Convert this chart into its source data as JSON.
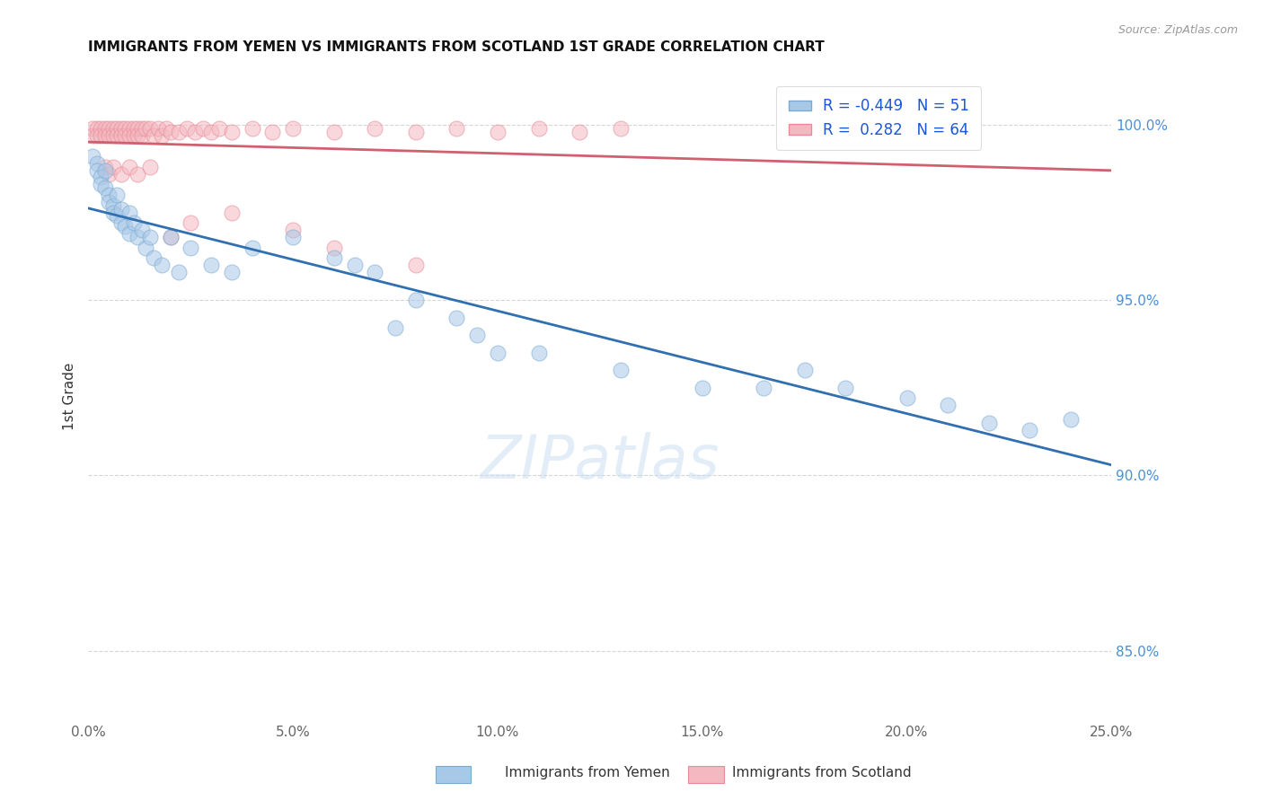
{
  "title": "IMMIGRANTS FROM YEMEN VS IMMIGRANTS FROM SCOTLAND 1ST GRADE CORRELATION CHART",
  "source_text": "Source: ZipAtlas.com",
  "ylabel": "1st Grade",
  "xlim": [
    0.0,
    0.25
  ],
  "ylim": [
    0.83,
    1.015
  ],
  "xticks": [
    0.0,
    0.05,
    0.1,
    0.15,
    0.2,
    0.25
  ],
  "xtick_labels": [
    "0.0%",
    "5.0%",
    "10.0%",
    "15.0%",
    "20.0%",
    "25.0%"
  ],
  "yticks": [
    0.85,
    0.9,
    0.95,
    1.0
  ],
  "ytick_labels": [
    "85.0%",
    "90.0%",
    "95.0%",
    "100.0%"
  ],
  "legend_r_yemen": "-0.449",
  "legend_n_yemen": "51",
  "legend_r_scotland": "0.282",
  "legend_n_scotland": "64",
  "yemen_color": "#a8c8e8",
  "scotland_color": "#f4b8c0",
  "yemen_edge_color": "#7aaad0",
  "scotland_edge_color": "#e88a98",
  "yemen_line_color": "#3070b0",
  "scotland_line_color": "#d06070",
  "watermark": "ZIPatlas",
  "watermark_color": "#c8ddf0",
  "background_color": "#ffffff",
  "yemen_x": [
    0.001,
    0.002,
    0.002,
    0.003,
    0.003,
    0.004,
    0.004,
    0.005,
    0.005,
    0.006,
    0.006,
    0.007,
    0.007,
    0.008,
    0.008,
    0.009,
    0.01,
    0.01,
    0.011,
    0.012,
    0.013,
    0.014,
    0.015,
    0.016,
    0.018,
    0.02,
    0.022,
    0.025,
    0.03,
    0.035,
    0.04,
    0.05,
    0.06,
    0.065,
    0.07,
    0.075,
    0.08,
    0.09,
    0.095,
    0.1,
    0.11,
    0.13,
    0.15,
    0.165,
    0.175,
    0.185,
    0.2,
    0.21,
    0.22,
    0.23,
    0.24
  ],
  "yemen_y": [
    0.991,
    0.989,
    0.987,
    0.985,
    0.983,
    0.987,
    0.982,
    0.98,
    0.978,
    0.977,
    0.975,
    0.98,
    0.974,
    0.972,
    0.976,
    0.971,
    0.975,
    0.969,
    0.972,
    0.968,
    0.97,
    0.965,
    0.968,
    0.962,
    0.96,
    0.968,
    0.958,
    0.965,
    0.96,
    0.958,
    0.965,
    0.968,
    0.962,
    0.96,
    0.958,
    0.942,
    0.95,
    0.945,
    0.94,
    0.935,
    0.935,
    0.93,
    0.925,
    0.925,
    0.93,
    0.925,
    0.922,
    0.92,
    0.915,
    0.913,
    0.916
  ],
  "scotland_x": [
    0.001,
    0.001,
    0.002,
    0.002,
    0.003,
    0.003,
    0.004,
    0.004,
    0.005,
    0.005,
    0.006,
    0.006,
    0.007,
    0.007,
    0.008,
    0.008,
    0.009,
    0.009,
    0.01,
    0.01,
    0.011,
    0.011,
    0.012,
    0.012,
    0.013,
    0.013,
    0.014,
    0.015,
    0.016,
    0.017,
    0.018,
    0.019,
    0.02,
    0.022,
    0.024,
    0.026,
    0.028,
    0.03,
    0.032,
    0.035,
    0.04,
    0.045,
    0.05,
    0.06,
    0.07,
    0.08,
    0.09,
    0.1,
    0.11,
    0.12,
    0.13,
    0.02,
    0.025,
    0.035,
    0.05,
    0.06,
    0.08,
    0.004,
    0.005,
    0.006,
    0.008,
    0.01,
    0.012,
    0.015
  ],
  "scotland_y": [
    0.999,
    0.997,
    0.999,
    0.997,
    0.999,
    0.997,
    0.999,
    0.997,
    0.999,
    0.997,
    0.999,
    0.997,
    0.999,
    0.997,
    0.999,
    0.997,
    0.999,
    0.997,
    0.999,
    0.997,
    0.999,
    0.997,
    0.999,
    0.997,
    0.999,
    0.997,
    0.999,
    0.999,
    0.997,
    0.999,
    0.997,
    0.999,
    0.998,
    0.998,
    0.999,
    0.998,
    0.999,
    0.998,
    0.999,
    0.998,
    0.999,
    0.998,
    0.999,
    0.998,
    0.999,
    0.998,
    0.999,
    0.998,
    0.999,
    0.998,
    0.999,
    0.968,
    0.972,
    0.975,
    0.97,
    0.965,
    0.96,
    0.988,
    0.986,
    0.988,
    0.986,
    0.988,
    0.986,
    0.988
  ],
  "title_fontsize": 11,
  "axis_label_fontsize": 11,
  "tick_fontsize": 11,
  "legend_fontsize": 12
}
